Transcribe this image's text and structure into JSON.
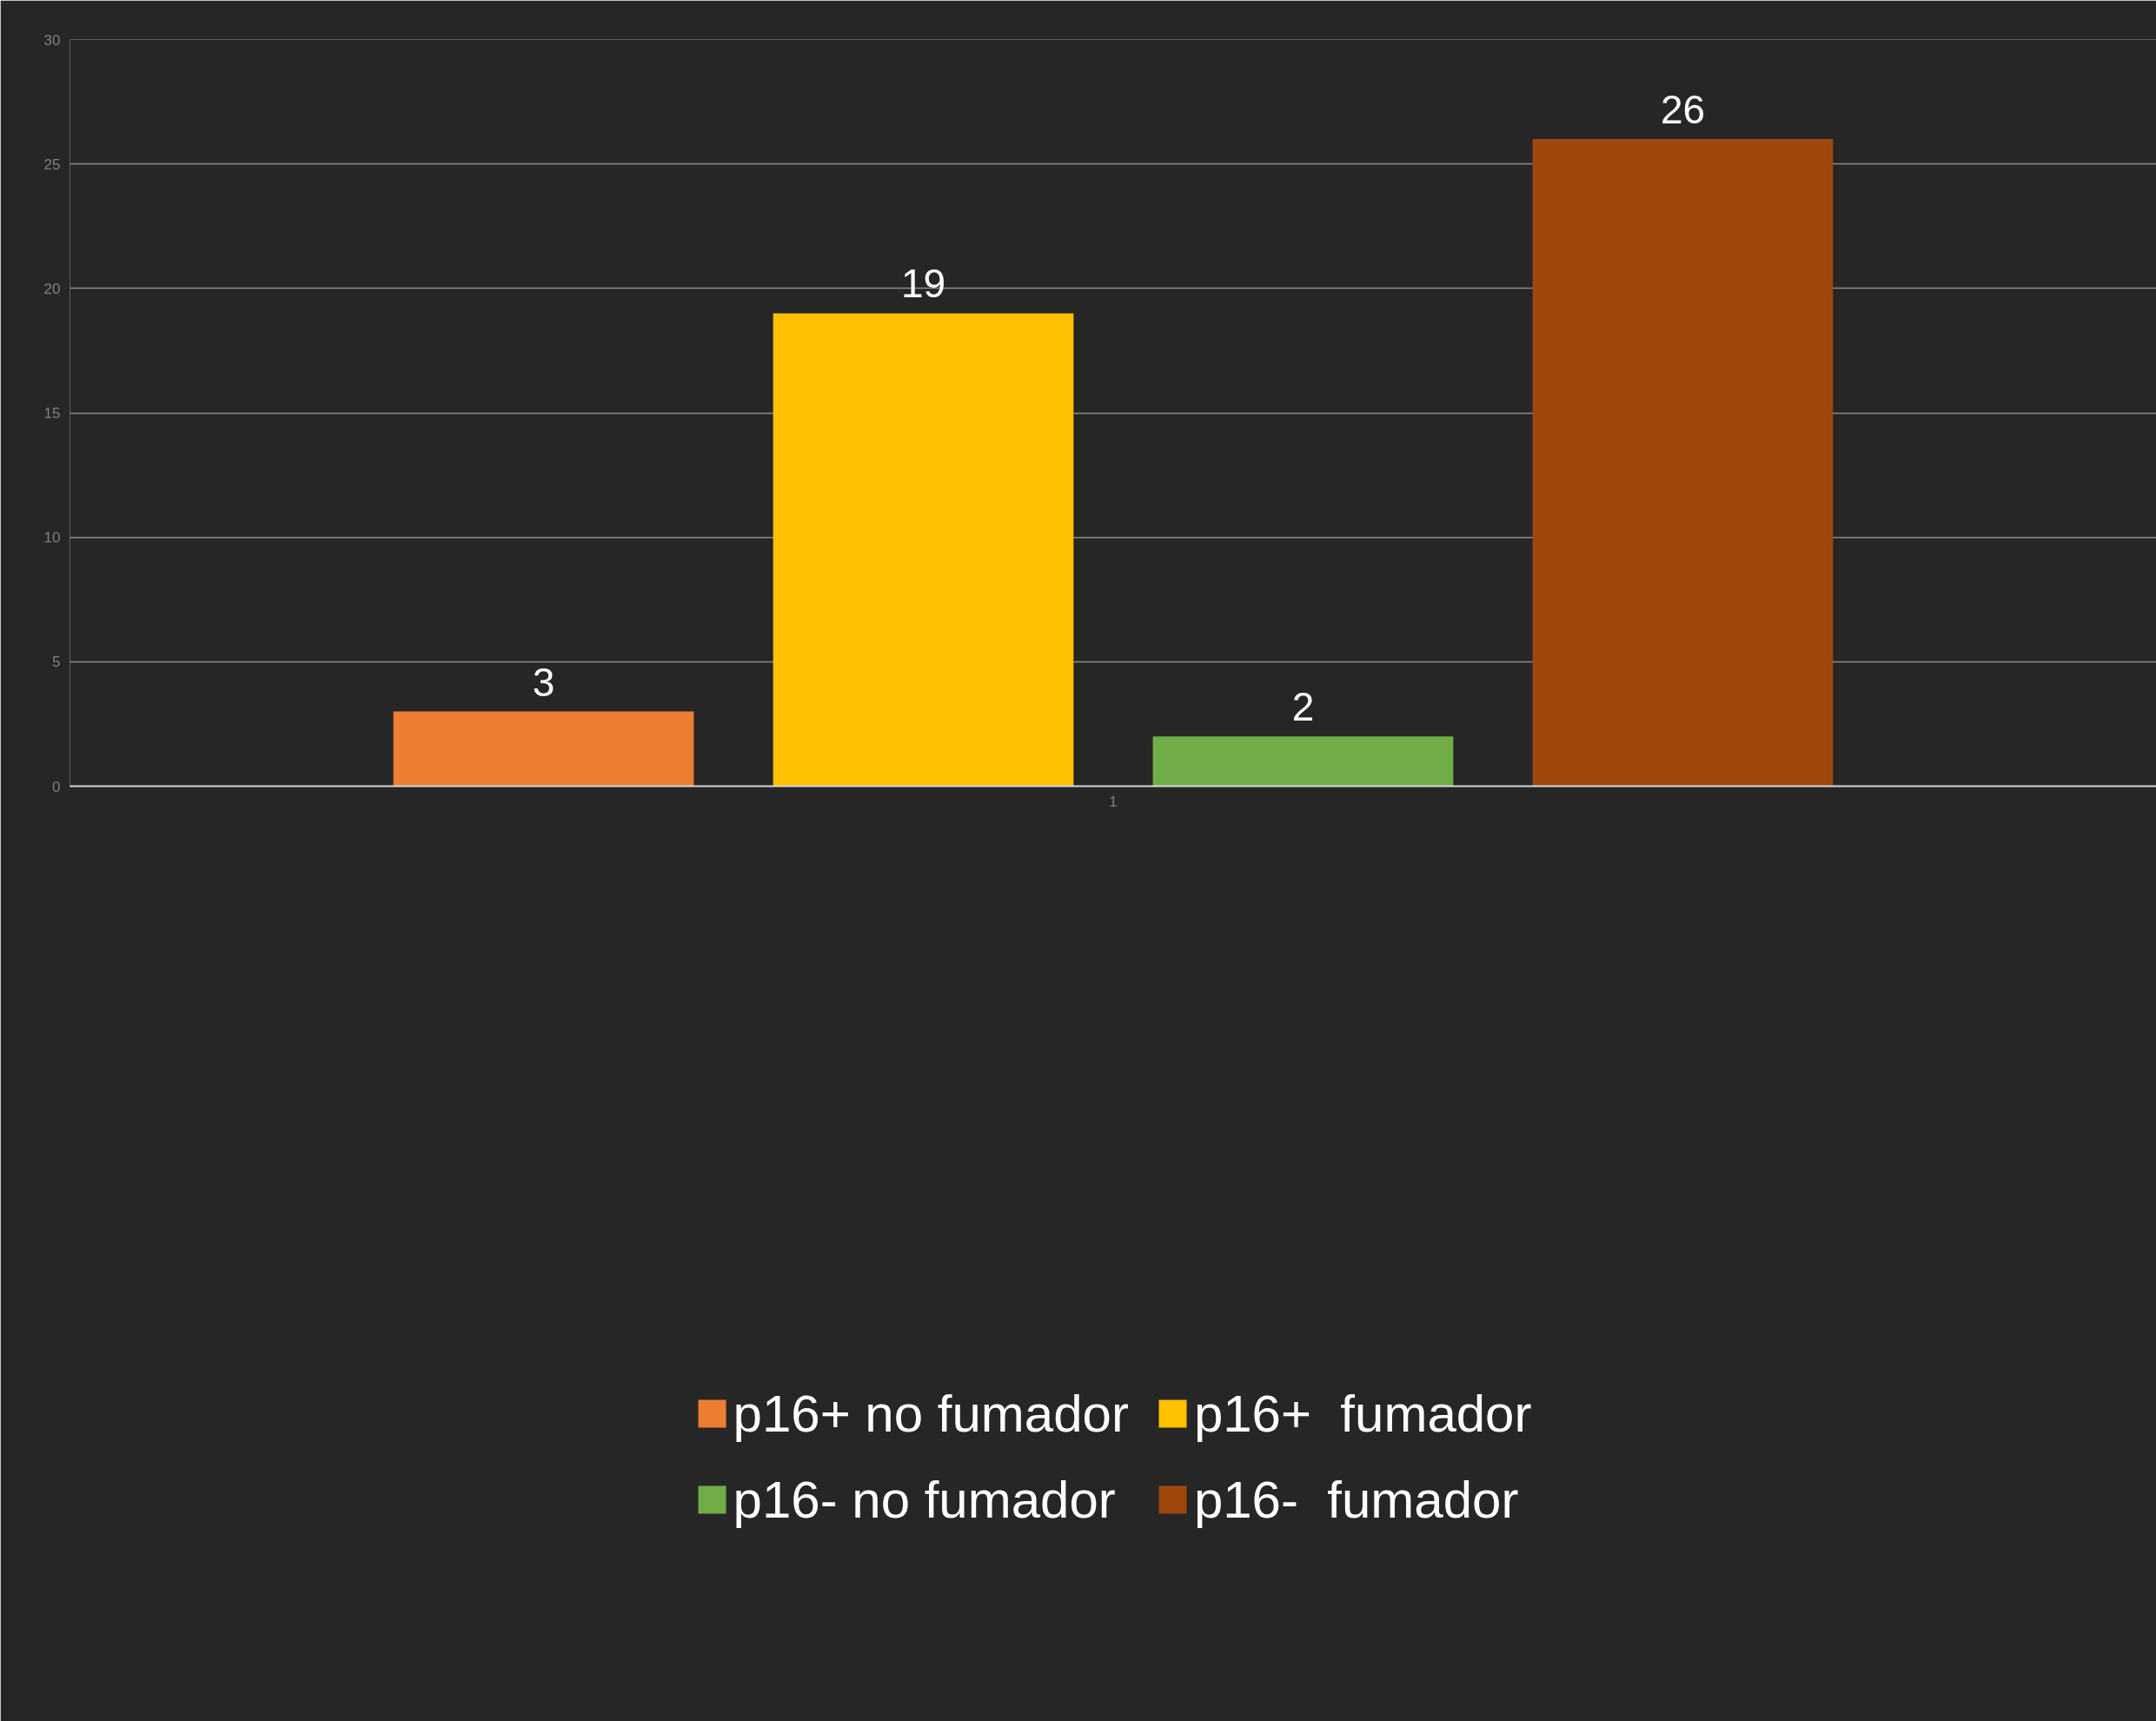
{
  "chart_data": {
    "type": "bar",
    "categories": [
      "1"
    ],
    "series": [
      {
        "name": "p16+ no fumador",
        "color": "#ed7d31",
        "values": [
          3
        ]
      },
      {
        "name": "p16+  fumador",
        "color": "#ffc000",
        "values": [
          19
        ]
      },
      {
        "name": "p16- no fumador",
        "color": "#70ad47",
        "values": [
          2
        ]
      },
      {
        "name": "p16-  fumador",
        "color": "#9e480e",
        "values": [
          26
        ]
      }
    ],
    "ylim": [
      0,
      30
    ],
    "yticks": [
      0,
      5,
      10,
      15,
      20,
      25,
      30
    ],
    "grid": "y",
    "legend": "bottom",
    "data_labels": true
  }
}
